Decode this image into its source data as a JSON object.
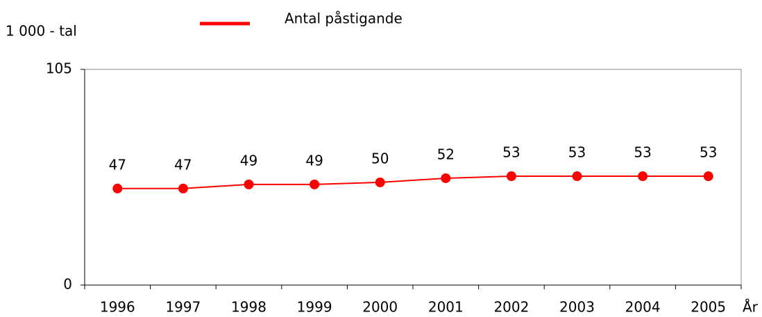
{
  "chart_data": {
    "type": "line",
    "y_label": "1 000 - tal",
    "x_label": "År",
    "categories": [
      "1996",
      "1997",
      "1998",
      "1999",
      "2000",
      "2001",
      "2002",
      "2003",
      "2004",
      "2005"
    ],
    "series": [
      {
        "name": "Antal påstigande",
        "color": "#ff0000",
        "values": [
          47,
          47,
          49,
          49,
          50,
          52,
          53,
          53,
          53,
          53
        ]
      }
    ],
    "ylim": [
      0,
      105
    ],
    "yticks": [
      0,
      105
    ],
    "grid": false,
    "legend": "top"
  }
}
